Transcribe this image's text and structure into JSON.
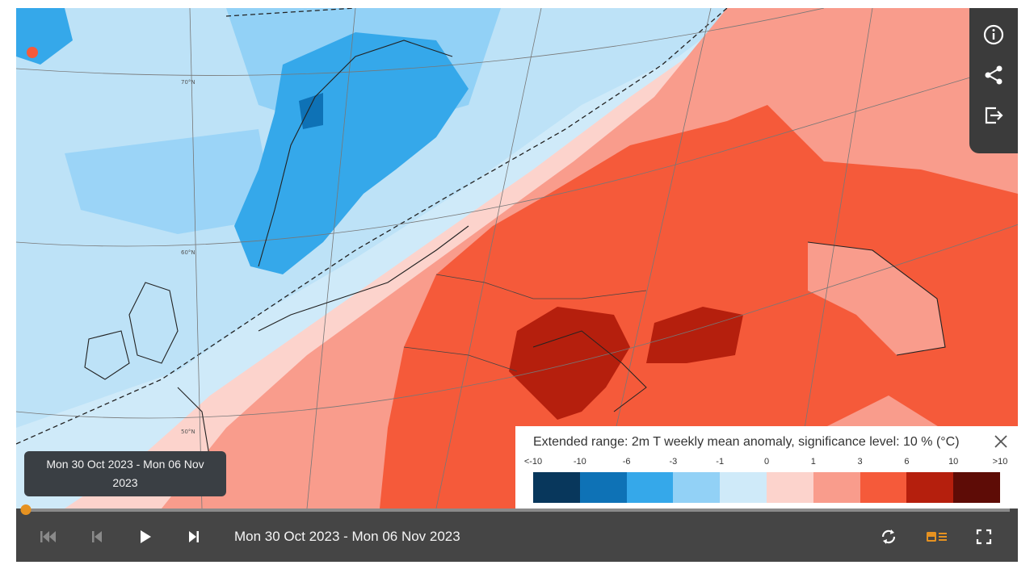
{
  "map": {
    "title": "Extended range: 2m T weekly mean anomaly, significance level: 10 % (°C)",
    "lat_labels": [
      "70°N",
      "60°N",
      "50°N"
    ]
  },
  "legend": {
    "ticks": [
      "<-10",
      "-10",
      "-6",
      "-3",
      "-1",
      "0",
      "1",
      "3",
      "6",
      "10",
      ">10"
    ],
    "colors": [
      "#08375c",
      "#0e72b6",
      "#35a8ea",
      "#92d1f6",
      "#cfeaf9",
      "#fcd3cc",
      "#f99c8c",
      "#f55a3a",
      "#b51f0d",
      "#5e0c06"
    ]
  },
  "tooltip": {
    "line1": "Mon 30 Oct 2023 - Mon 06 Nov",
    "line2": "2023"
  },
  "timeline": {
    "period": "Mon 30 Oct 2023 - Mon 06 Nov 2023",
    "progress": 0
  },
  "side_tools": [
    "info-icon",
    "share-icon",
    "export-icon"
  ],
  "colors": {
    "accent": "#e69221",
    "bar": "#454545"
  }
}
